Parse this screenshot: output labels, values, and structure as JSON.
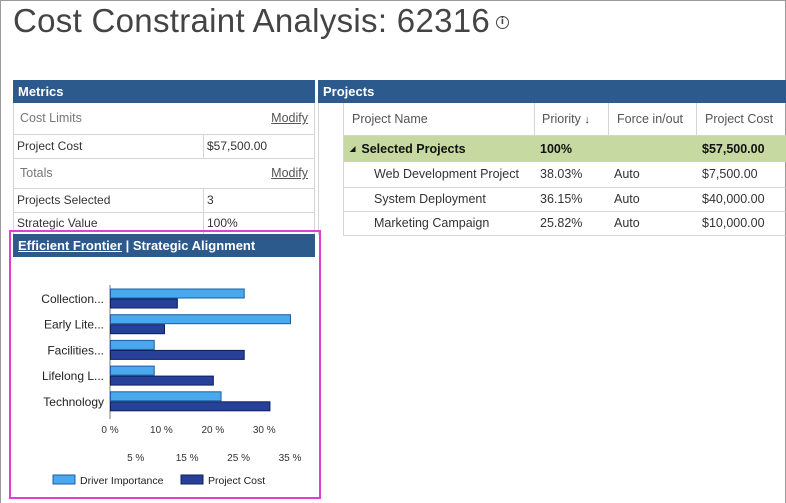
{
  "page": {
    "title": "Cost Constraint Analysis: 62316"
  },
  "metrics": {
    "header": "Metrics",
    "cost_limits_label": "Cost Limits",
    "cost_limits_modify": "Modify",
    "project_cost_label": "Project Cost",
    "project_cost_value": "$57,500.00",
    "totals_label": "Totals",
    "totals_modify": "Modify",
    "projects_selected_label": "Projects Selected",
    "projects_selected_value": "3",
    "strategic_value_label": "Strategic Value",
    "strategic_value_value": "100%"
  },
  "projects": {
    "header": "Projects",
    "columns": {
      "name": "Project Name",
      "priority": "Priority",
      "priority_sort_icon": "↓",
      "force": "Force in/out",
      "cost": "Project Cost"
    },
    "group": {
      "label": "Selected Projects",
      "expand_icon": "◢",
      "priority": "100%",
      "cost": "$57,500.00"
    },
    "rows": [
      {
        "name": "Web Development Project",
        "priority": "38.03%",
        "force": "Auto",
        "cost": "$7,500.00"
      },
      {
        "name": "System Deployment",
        "priority": "36.15%",
        "force": "Auto",
        "cost": "$40,000.00"
      },
      {
        "name": "Marketing Campaign",
        "priority": "25.82%",
        "force": "Auto",
        "cost": "$10,000.00"
      }
    ]
  },
  "chart_header": {
    "link": "Efficient Frontier",
    "separator": " | ",
    "current": "Strategic Alignment"
  },
  "chart_data": {
    "type": "bar",
    "orientation": "horizontal",
    "categories": [
      "Collection...",
      "Early Lite...",
      "Facilities...",
      "Lifelong L...",
      "Technology"
    ],
    "series": [
      {
        "name": "Driver Importance",
        "color": "#4aa8ec",
        "values": [
          26,
          35,
          8.5,
          8.5,
          21.5
        ]
      },
      {
        "name": "Project Cost",
        "color": "#27409a",
        "values": [
          13,
          10.5,
          26,
          20,
          31
        ]
      }
    ],
    "x_ticks_upper": [
      "0 %",
      "10 %",
      "20 %",
      "30 %"
    ],
    "x_ticks_lower": [
      "5 %",
      "15 %",
      "25 %",
      "35 %"
    ],
    "xlim": [
      0,
      35
    ],
    "legend_position": "bottom"
  }
}
